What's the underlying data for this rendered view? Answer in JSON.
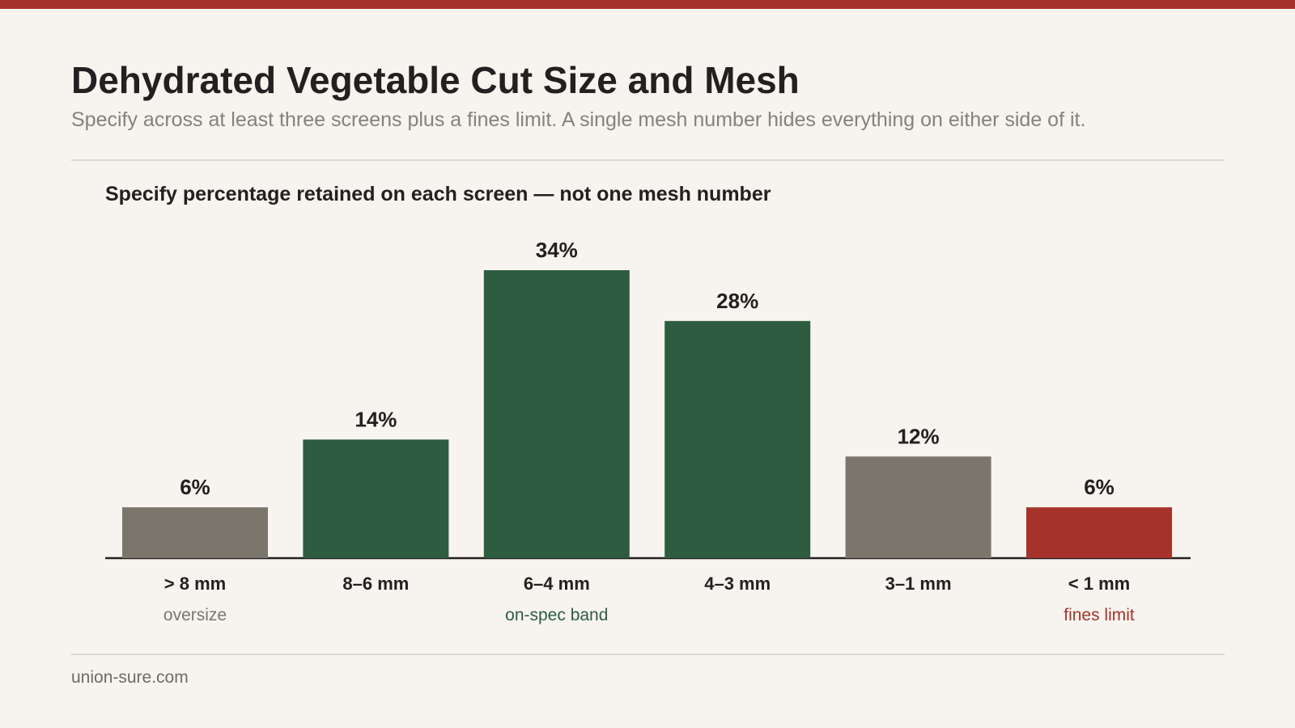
{
  "header": {
    "title": "Dehydrated Vegetable Cut Size and Mesh",
    "subtitle": "Specify across at least three screens plus a fines limit. A single mesh number hides everything on either side of it."
  },
  "chart_data": {
    "type": "bar",
    "title": "Specify percentage retained on each screen — not one mesh number",
    "categories": [
      "> 8 mm",
      "8–6 mm",
      "6–4 mm",
      "4–3 mm",
      "3–1 mm",
      "< 1 mm"
    ],
    "values": [
      6,
      14,
      34,
      28,
      12,
      6
    ],
    "value_labels": [
      "6%",
      "14%",
      "34%",
      "28%",
      "12%",
      "6%"
    ],
    "unit": "%",
    "ylim": [
      0,
      34
    ],
    "bar_colors": [
      "#7a766c",
      "#2e5c40",
      "#2e5c40",
      "#2e5c40",
      "#7a766c",
      "#a5332b"
    ],
    "annotations": [
      {
        "text": "oversize",
        "category_index": 0,
        "color": "#7a766c"
      },
      {
        "text": "on-spec band",
        "category_index": 2,
        "color": "#2e5c40"
      },
      {
        "text": "fines limit",
        "category_index": 5,
        "color": "#a5332b"
      }
    ],
    "grid": false,
    "legend": "none"
  },
  "footer": {
    "source": "union-sure.com"
  }
}
